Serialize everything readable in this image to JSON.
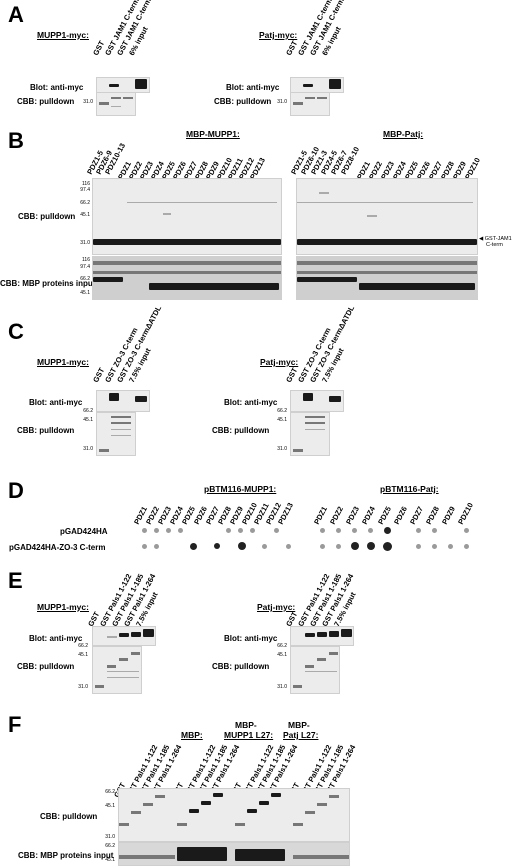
{
  "A": {
    "letter": "A",
    "left_header": "MUPP1-myc:",
    "right_header": "Patj-myc:",
    "lanes": [
      "GST",
      "GST JAM1 C-term",
      "GST JAM1 C-termΔSFLV",
      "6% input"
    ],
    "row_blot": "Blot: anti-myc",
    "row_cbb": "CBB: pulldown",
    "mw": [
      "31.0"
    ]
  },
  "B": {
    "letter": "B",
    "header_mupp1": "MBP-MUPP1:",
    "header_patj": "MBP-Patj:",
    "lanes_mupp1_group1": [
      "PDZ1-5",
      "PDZ6-9",
      "PDZ10-13"
    ],
    "lanes_mupp1_group2": [
      "PDZ1",
      "PDZ2",
      "PDZ3",
      "PDZ4",
      "PDZ5",
      "PDZ6",
      "PDZ7",
      "PDZ8",
      "PDZ9",
      "PDZ10",
      "PDZ11",
      "PDZ12",
      "PDZ13"
    ],
    "lanes_patj_group1": [
      "PDZ1-5",
      "PDZ6-10",
      "PDZ1-3",
      "PDZ4-5",
      "PDZ6-7",
      "PDZ8-10"
    ],
    "lanes_patj_group2": [
      "PDZ1",
      "PDZ2",
      "PDZ3",
      "PDZ4",
      "PDZ5",
      "PDZ6",
      "PDZ7",
      "PDZ8",
      "PDZ9",
      "PDZ10"
    ],
    "row_pulldown": "CBB: pulldown",
    "row_input": "CBB: MBP proteins input",
    "arrow_label_1": "GST-JAM1",
    "arrow_label_2": "C-term",
    "mw_top": [
      "116",
      "97.4",
      "66.2",
      "45.1",
      "31.0"
    ],
    "mw_bottom": [
      "116",
      "97.4",
      "66.2",
      "45.1"
    ]
  },
  "C": {
    "letter": "C",
    "left_header": "MUPP1-myc:",
    "right_header": "Patj-myc:",
    "lanes": [
      "GST",
      "GST ZO-3 C-term",
      "GST ZO-3 C-termΔATDL",
      "7.5% input"
    ],
    "row_blot": "Blot: anti-myc",
    "row_cbb": "CBB: pulldown",
    "mw": [
      "66.2",
      "45.1",
      "31.0"
    ]
  },
  "D": {
    "letter": "D",
    "header_mupp1": "pBTM116-MUPP1:",
    "header_patj": "pBTM116-Patj:",
    "lanes_mupp1": [
      "PDZ1",
      "PDZ2",
      "PDZ3",
      "PDZ4",
      "PDZ5",
      "PDZ6",
      "PDZ7",
      "PDZ8",
      "PDZ9",
      "PDZ10",
      "PDZ11",
      "PDZ12",
      "PDZ13"
    ],
    "lanes_patj": [
      "PDZ1",
      "PDZ2",
      "PDZ3",
      "PDZ4",
      "PDZ5",
      "PDZ6",
      "PDZ7",
      "PDZ8",
      "PDZ9",
      "PDZ10"
    ],
    "row1": "pGAD424HA",
    "row2": "pGAD424HA-ZO-3 C-term"
  },
  "E": {
    "letter": "E",
    "left_header": "MUPP1-myc:",
    "right_header": "Patj-myc:",
    "lanes": [
      "GST",
      "GST Pals1 1-122",
      "GST Pals1 1-185",
      "GST Pals1 1-264",
      "7.5% input"
    ],
    "row_blot": "Blot: anti-myc",
    "row_cbb": "CBB: pulldown",
    "mw": [
      "66.2",
      "45.1",
      "31.0"
    ]
  },
  "F": {
    "letter": "F",
    "group_mbp": "MBP:",
    "group_mupp1_a": "MBP-",
    "group_mupp1_b": "MUPP1 L27:",
    "group_patj_a": "MBP-",
    "group_patj_b": "Patj L27:",
    "lanes_group": [
      "GST",
      "GST Pals1 1-122",
      "GST Pals1 1-185",
      "GST Pals1 1-264"
    ],
    "row_pulldown": "CBB: pulldown",
    "row_input": "CBB: MBP proteins input",
    "mw_top": [
      "66.2",
      "45.1",
      "31.0"
    ],
    "mw_bottom": [
      "66.2",
      "45.1"
    ]
  }
}
